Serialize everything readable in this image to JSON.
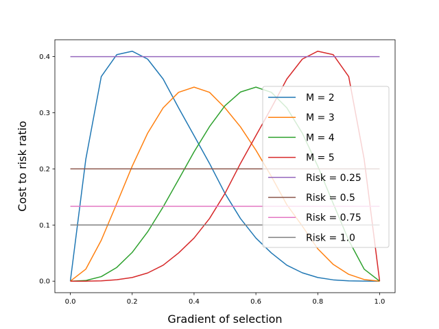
{
  "chart_data": {
    "type": "line",
    "title": "",
    "xlabel": "Gradient of selection",
    "ylabel": "Cost to risk ratio",
    "xlim": [
      -0.05,
      1.05
    ],
    "ylim": [
      -0.0205,
      0.43
    ],
    "xticks": [
      0.0,
      0.2,
      0.4,
      0.6,
      0.8,
      1.0
    ],
    "xtick_labels": [
      "0.0",
      "0.2",
      "0.4",
      "0.6",
      "0.8",
      "1.0"
    ],
    "yticks": [
      0.0,
      0.1,
      0.2,
      0.3,
      0.4
    ],
    "ytick_labels": [
      "0.0",
      "0.1",
      "0.2",
      "0.3",
      "0.4"
    ],
    "grid": false,
    "legend_position": "center-right",
    "x": [
      0.0,
      0.05,
      0.1,
      0.15,
      0.2,
      0.25,
      0.3,
      0.35,
      0.4,
      0.45,
      0.5,
      0.55,
      0.6,
      0.65,
      0.7,
      0.75,
      0.8,
      0.85,
      0.9,
      0.95,
      1.0
    ],
    "series": [
      {
        "name": "M = 2",
        "color": "#1f77b4",
        "values": [
          0.0,
          0.2172,
          0.3645,
          0.4034,
          0.4096,
          0.3955,
          0.3601,
          0.3087,
          0.2592,
          0.2097,
          0.1563,
          0.1116,
          0.0768,
          0.0502,
          0.0284,
          0.0149,
          0.0065,
          0.0023,
          0.0006,
          0.0001,
          0.0
        ]
      },
      {
        "name": "M = 3",
        "color": "#ff7f0e",
        "values": [
          0.0,
          0.0214,
          0.0729,
          0.1382,
          0.2048,
          0.2637,
          0.3087,
          0.3364,
          0.3456,
          0.3364,
          0.3087,
          0.2749,
          0.2333,
          0.1866,
          0.1361,
          0.0981,
          0.0576,
          0.0298,
          0.0122,
          0.0029,
          0.0
        ]
      },
      {
        "name": "M = 4",
        "color": "#2ca02c",
        "values": [
          0.0,
          0.0011,
          0.0081,
          0.0244,
          0.0512,
          0.0879,
          0.1323,
          0.1811,
          0.2304,
          0.2753,
          0.3125,
          0.3369,
          0.3456,
          0.3364,
          0.3087,
          0.2637,
          0.2048,
          0.1382,
          0.0729,
          0.0214,
          0.0
        ]
      },
      {
        "name": "M = 5",
        "color": "#d62728",
        "values": [
          0.0,
          0.0,
          0.0005,
          0.0025,
          0.0065,
          0.0146,
          0.0284,
          0.0502,
          0.0768,
          0.1116,
          0.1563,
          0.2097,
          0.2592,
          0.3087,
          0.3601,
          0.3955,
          0.4096,
          0.4034,
          0.3645,
          0.2172,
          0.0
        ]
      },
      {
        "name": "Risk = 0.25",
        "color": "#9467bd",
        "values": [
          0.4,
          0.4,
          0.4,
          0.4,
          0.4,
          0.4,
          0.4,
          0.4,
          0.4,
          0.4,
          0.4,
          0.4,
          0.4,
          0.4,
          0.4,
          0.4,
          0.4,
          0.4,
          0.4,
          0.4,
          0.4
        ]
      },
      {
        "name": "Risk = 0.5",
        "color": "#8c564b",
        "values": [
          0.2,
          0.2,
          0.2,
          0.2,
          0.2,
          0.2,
          0.2,
          0.2,
          0.2,
          0.2,
          0.2,
          0.2,
          0.2,
          0.2,
          0.2,
          0.2,
          0.2,
          0.2,
          0.2,
          0.2,
          0.2
        ]
      },
      {
        "name": "Risk = 0.75",
        "color": "#e377c2",
        "values": [
          0.1333,
          0.1333,
          0.1333,
          0.1333,
          0.1333,
          0.1333,
          0.1333,
          0.1333,
          0.1333,
          0.1333,
          0.1333,
          0.1333,
          0.1333,
          0.1333,
          0.1333,
          0.1333,
          0.1333,
          0.1333,
          0.1333,
          0.1333,
          0.1333
        ]
      },
      {
        "name": "Risk = 1.0",
        "color": "#7f7f7f",
        "values": [
          0.1,
          0.1,
          0.1,
          0.1,
          0.1,
          0.1,
          0.1,
          0.1,
          0.1,
          0.1,
          0.1,
          0.1,
          0.1,
          0.1,
          0.1,
          0.1,
          0.1,
          0.1,
          0.1,
          0.1,
          0.1
        ]
      }
    ]
  }
}
